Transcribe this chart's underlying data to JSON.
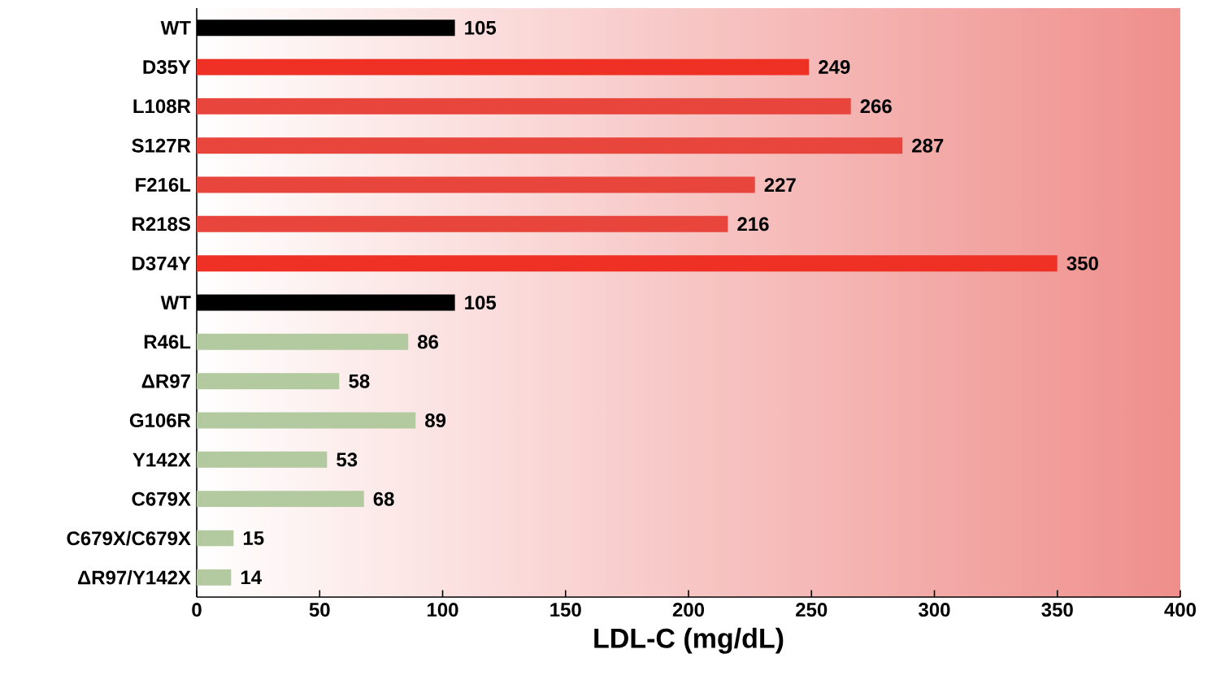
{
  "chart_data": {
    "type": "bar",
    "orientation": "horizontal",
    "xlabel": "LDL-C (mg/dL)",
    "categories": [
      "WT",
      "D35Y",
      "L108R",
      "S127R",
      "F216L",
      "R218S",
      "D374Y",
      "WT",
      "R46L",
      "ΔR97",
      "G106R",
      "Y142X",
      "C679X",
      "C679X/C679X",
      "ΔR97/Y142X"
    ],
    "values": [
      105,
      249,
      266,
      287,
      227,
      216,
      350,
      105,
      86,
      58,
      89,
      53,
      68,
      15,
      14
    ],
    "colors": [
      "#000000",
      "#ee3124",
      "#e8453c",
      "#e8453c",
      "#e8453c",
      "#e8453c",
      "#ee3124",
      "#000000",
      "#b3c99f",
      "#b3c99f",
      "#b3c99f",
      "#b3c99f",
      "#b3c99f",
      "#b3c99f",
      "#b3c99f"
    ],
    "xlim": [
      0,
      400
    ],
    "xticks": [
      0,
      50,
      100,
      150,
      200,
      250,
      300,
      350,
      400
    ],
    "data_labels": true
  }
}
